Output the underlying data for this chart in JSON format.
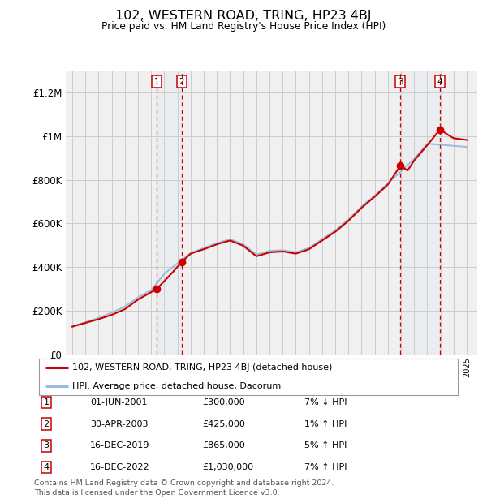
{
  "title": "102, WESTERN ROAD, TRING, HP23 4BJ",
  "subtitle": "Price paid vs. HM Land Registry's House Price Index (HPI)",
  "ylim": [
    0,
    1300000
  ],
  "yticks": [
    0,
    200000,
    400000,
    600000,
    800000,
    1000000,
    1200000
  ],
  "ytick_labels": [
    "£0",
    "£200K",
    "£400K",
    "£600K",
    "£800K",
    "£1M",
    "£1.2M"
  ],
  "xlim_start": 1994.5,
  "xlim_end": 2025.8,
  "background_color": "#ffffff",
  "plot_bg_color": "#f0f0f0",
  "grid_color": "#cccccc",
  "hpi_line_color": "#99bbdd",
  "property_line_color": "#cc0000",
  "transaction_line_color": "#cc0000",
  "transactions": [
    {
      "id": 1,
      "date": "01-JUN-2001",
      "year": 2001.42,
      "price": 300000,
      "hpi_pct": "7%",
      "hpi_dir": "↓"
    },
    {
      "id": 2,
      "date": "30-APR-2003",
      "year": 2003.33,
      "price": 425000,
      "hpi_pct": "1%",
      "hpi_dir": "↑"
    },
    {
      "id": 3,
      "date": "16-DEC-2019",
      "year": 2019.96,
      "price": 865000,
      "hpi_pct": "5%",
      "hpi_dir": "↑"
    },
    {
      "id": 4,
      "date": "16-DEC-2022",
      "year": 2022.96,
      "price": 1030000,
      "hpi_pct": "7%",
      "hpi_dir": "↑"
    }
  ],
  "legend_line1": "102, WESTERN ROAD, TRING, HP23 4BJ (detached house)",
  "legend_line2": "HPI: Average price, detached house, Dacorum",
  "footer1": "Contains HM Land Registry data © Crown copyright and database right 2024.",
  "footer2": "This data is licensed under the Open Government Licence v3.0.",
  "hpi_curve_x": [
    1995,
    1996,
    1997,
    1998,
    1999,
    2000,
    2001,
    2002,
    2003,
    2004,
    2005,
    2006,
    2007,
    2008,
    2009,
    2010,
    2011,
    2012,
    2013,
    2014,
    2015,
    2016,
    2017,
    2018,
    2019,
    2020,
    2021,
    2022,
    2023,
    2024,
    2025
  ],
  "hpi_curve_y": [
    128000,
    148000,
    168000,
    192000,
    220000,
    262000,
    295000,
    370000,
    418000,
    465000,
    488000,
    510000,
    528000,
    505000,
    458000,
    475000,
    478000,
    468000,
    488000,
    528000,
    568000,
    618000,
    678000,
    728000,
    785000,
    838000,
    895000,
    965000,
    960000,
    955000,
    950000
  ],
  "prop_curve_x": [
    1995,
    1996,
    1997,
    1998,
    1999,
    2000,
    2001.42,
    2002.5,
    2003.33,
    2004,
    2005,
    2006,
    2007,
    2008,
    2009,
    2010,
    2011,
    2012,
    2013,
    2014,
    2015,
    2016,
    2017,
    2018,
    2019,
    2019.96,
    2020.5,
    2021,
    2022,
    2022.96,
    2023.5,
    2024,
    2025
  ],
  "prop_curve_y": [
    128000,
    145000,
    162000,
    182000,
    208000,
    252000,
    300000,
    368000,
    425000,
    462000,
    482000,
    505000,
    522000,
    498000,
    450000,
    468000,
    472000,
    462000,
    482000,
    522000,
    562000,
    612000,
    672000,
    722000,
    778000,
    865000,
    842000,
    888000,
    958000,
    1030000,
    1008000,
    990000,
    982000
  ]
}
